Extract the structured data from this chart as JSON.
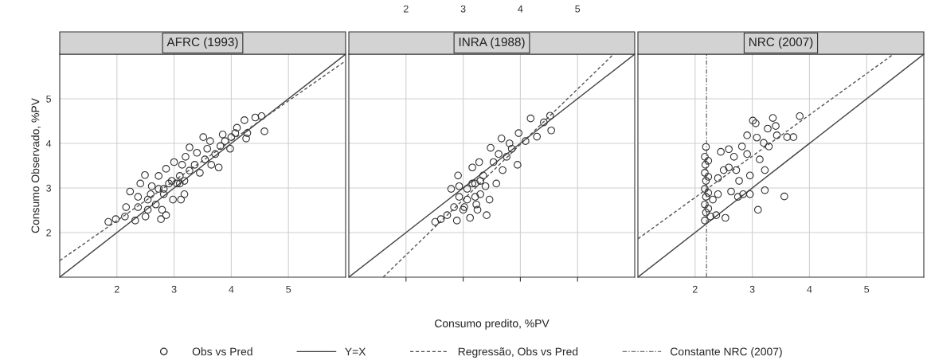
{
  "chart_data": [
    {
      "type": "scatter",
      "title": "AFRC (1993)",
      "ylabel": "Consumo Observado, %PV",
      "xlim": [
        1,
        6
      ],
      "ylim": [
        1,
        6
      ],
      "xticks": [
        2,
        3,
        4,
        5
      ],
      "yticks": [
        2,
        3,
        4,
        5
      ],
      "grid": true,
      "legend": "bottom",
      "series": [
        {
          "name": "Obs vs Pred",
          "marker": "circle",
          "color": "#333333",
          "x": [
            1.85,
            1.98,
            2.14,
            2.16,
            2.23,
            2.32,
            2.37,
            2.41,
            2.49,
            2.5,
            2.54,
            2.59,
            2.61,
            2.68,
            2.73,
            2.77,
            2.79,
            2.82,
            2.86,
            2.91,
            2.98,
            3.0,
            3.05,
            3.1,
            3.12,
            3.14,
            3.18,
            3.2,
            3.27,
            3.27,
            3.36,
            3.4,
            3.45,
            3.51,
            3.54,
            3.58,
            3.63,
            3.65,
            3.72,
            3.78,
            3.81,
            3.85,
            3.89,
            3.98,
            4.0,
            4.07,
            4.1,
            4.23,
            4.26,
            4.28,
            4.42,
            4.53,
            4.58,
            2.73,
            2.82,
            3.1,
            2.96,
            2.54,
            2.37,
            2.86,
            3.18
          ],
          "values": [
            2.24,
            2.3,
            2.36,
            2.57,
            2.92,
            2.27,
            2.8,
            3.1,
            3.29,
            2.36,
            2.51,
            2.86,
            3.04,
            2.63,
            3.27,
            2.3,
            2.51,
            2.98,
            3.43,
            3.1,
            2.74,
            3.58,
            3.1,
            3.27,
            2.74,
            3.52,
            3.16,
            3.7,
            3.91,
            3.39,
            3.52,
            3.79,
            3.34,
            4.14,
            3.64,
            3.88,
            4.05,
            3.52,
            3.76,
            3.46,
            3.94,
            4.2,
            4.05,
            3.88,
            4.14,
            4.23,
            4.35,
            4.52,
            4.11,
            4.23,
            4.58,
            4.61,
            4.27,
            2.98,
            2.86,
            3.1,
            3.16,
            2.74,
            2.57,
            2.39,
            2.86
          ]
        },
        {
          "name": "Y=X",
          "type": "line",
          "line_style": "solid",
          "color": "#444444",
          "x": [
            1,
            6
          ],
          "values": [
            1,
            6
          ]
        },
        {
          "name": "Regressão, Obs vs Pred",
          "type": "line",
          "line_style": "dashed",
          "color": "#555555",
          "x": [
            1,
            6
          ],
          "values": [
            1.37,
            5.85
          ]
        }
      ]
    },
    {
      "type": "scatter",
      "title": "INRA (1988)",
      "xlabel": "Consumo predito, %PV",
      "xlim": [
        1,
        6
      ],
      "ylim": [
        1,
        6
      ],
      "x2lim": [
        1,
        6
      ],
      "x2ticks": [
        2,
        3,
        4,
        5
      ],
      "yticks": [
        {
          "value": 2,
          "label": null
        },
        {
          "value": 3,
          "label": null
        },
        {
          "value": 4,
          "label": null
        },
        {
          "value": 5,
          "label": null
        }
      ],
      "tick_labels": "x",
      "grid": true,
      "legend": "bottom",
      "series": [
        {
          "name": "Obs vs Pred",
          "marker": "circle",
          "color": "#333333",
          "x": [
            2.51,
            2.61,
            2.72,
            2.79,
            2.84,
            2.91,
            2.89,
            2.93,
            3.0,
            3.07,
            3.12,
            3.16,
            3.21,
            3.23,
            3.28,
            3.3,
            3.35,
            3.41,
            3.46,
            3.48,
            3.53,
            3.58,
            3.67,
            3.69,
            3.76,
            3.85,
            3.95,
            3.97,
            4.09,
            4.18,
            4.29,
            4.41,
            4.52,
            4.54,
            3.07,
            3.16,
            3.3,
            2.93,
            3.21,
            3.39,
            3.62,
            3.81,
            3.02,
            3.25
          ],
          "values": [
            2.24,
            2.3,
            2.39,
            2.98,
            2.57,
            3.28,
            2.27,
            2.8,
            2.51,
            2.98,
            2.33,
            3.46,
            3.1,
            2.63,
            3.58,
            2.86,
            3.28,
            2.39,
            2.74,
            3.9,
            3.58,
            3.1,
            4.11,
            3.4,
            3.7,
            3.88,
            3.52,
            4.23,
            4.05,
            4.56,
            4.15,
            4.47,
            4.62,
            4.29,
            2.74,
            3.1,
            3.16,
            3.04,
            2.8,
            3.04,
            3.76,
            4.0,
            2.57,
            2.51
          ]
        },
        {
          "name": "Y=X",
          "type": "line",
          "line_style": "solid",
          "color": "#444444",
          "x": [
            1,
            6
          ],
          "values": [
            1,
            6
          ]
        },
        {
          "name": "Regressão, Obs vs Pred",
          "type": "line",
          "line_style": "dashed",
          "color": "#555555",
          "x": [
            1.6,
            5.63
          ],
          "values": [
            1,
            6
          ]
        }
      ]
    },
    {
      "type": "scatter",
      "title": "NRC (2007)",
      "xlim": [
        1,
        6
      ],
      "ylim": [
        1,
        6
      ],
      "xticks": [
        2,
        3,
        4,
        5
      ],
      "yticks": [
        {
          "value": 2,
          "label": null
        },
        {
          "value": 3,
          "label": null
        },
        {
          "value": 4,
          "label": null
        },
        {
          "value": 5,
          "label": null
        }
      ],
      "tick_labels": "x",
      "grid": true,
      "legend": "bottom",
      "series": [
        {
          "name": "Obs vs Pred",
          "marker": "circle",
          "color": "#333333",
          "x": [
            2.19,
            2.17,
            2.18,
            2.17,
            2.19,
            2.17,
            2.19,
            2.17,
            2.19,
            2.17,
            2.23,
            2.23,
            2.23,
            2.23,
            2.27,
            2.37,
            2.53,
            2.31,
            2.4,
            2.45,
            2.5,
            2.59,
            2.63,
            2.68,
            2.72,
            2.75,
            2.77,
            2.82,
            2.84,
            2.91,
            2.96,
            2.96,
            3.01,
            3.06,
            3.08,
            3.1,
            3.13,
            3.2,
            3.22,
            3.22,
            3.27,
            3.29,
            3.36,
            3.41,
            3.43,
            3.56,
            3.61,
            3.72,
            3.83,
            2.91,
            2.59,
            2.4
          ],
          "values": [
            3.92,
            3.7,
            3.52,
            3.34,
            3.16,
            2.98,
            2.8,
            2.63,
            2.45,
            2.27,
            3.61,
            3.25,
            2.89,
            2.54,
            2.36,
            2.39,
            2.33,
            2.74,
            2.86,
            3.81,
            3.4,
            3.87,
            2.92,
            3.7,
            3.4,
            2.8,
            3.16,
            3.93,
            2.86,
            3.76,
            2.86,
            3.28,
            4.51,
            4.45,
            4.13,
            2.51,
            3.64,
            4.01,
            3.4,
            2.95,
            4.33,
            3.93,
            4.57,
            4.39,
            4.18,
            2.81,
            4.14,
            4.14,
            4.61,
            4.18,
            3.46,
            3.22
          ]
        },
        {
          "name": "Y=X",
          "type": "line",
          "line_style": "solid",
          "color": "#444444",
          "x": [
            1,
            6
          ],
          "values": [
            1,
            6
          ]
        },
        {
          "name": "Regressão, Obs vs Pred",
          "type": "line",
          "line_style": "dashed",
          "color": "#555555",
          "x": [
            1,
            5.47
          ],
          "values": [
            1.86,
            6
          ]
        },
        {
          "name": "Constante NRC (2007)",
          "type": "line",
          "line_style": "dashdot",
          "color": "#777777",
          "x": [
            2.2,
            2.2
          ],
          "values": [
            1,
            6
          ]
        }
      ]
    }
  ]
}
